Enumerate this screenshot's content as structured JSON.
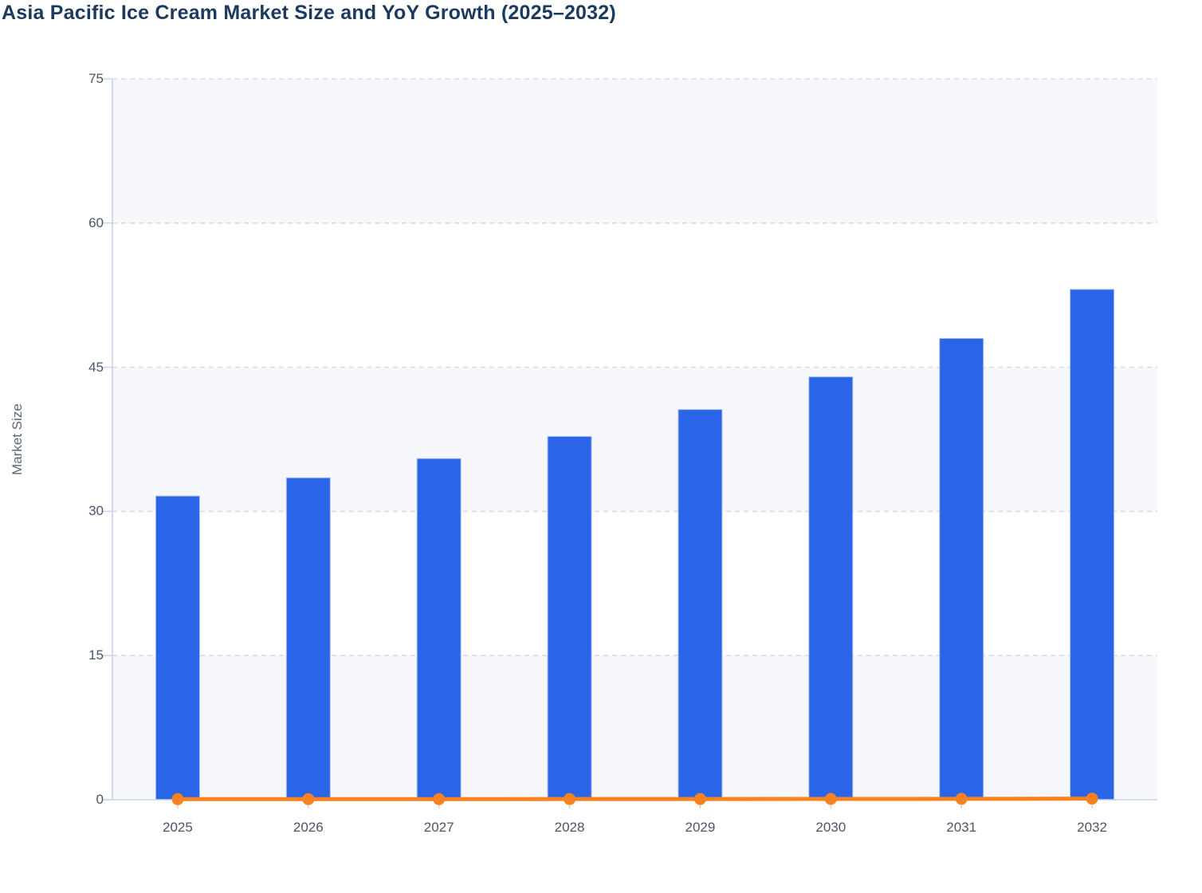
{
  "chart": {
    "title": "Asia Pacific Ice Cream Market Size and YoY Growth (2025–2032)",
    "ylabel": "Market Size"
  },
  "chart_data": {
    "type": "bar",
    "title": "Asia Pacific Ice Cream Market Size and YoY Growth (2025–2032)",
    "xlabel": "",
    "ylabel": "Market Size",
    "categories": [
      "2025",
      "2026",
      "2027",
      "2028",
      "2029",
      "2030",
      "2031",
      "2032"
    ],
    "series": [
      {
        "name": "Market Size",
        "type": "bar",
        "values": [
          31.6,
          33.5,
          35.5,
          37.8,
          40.6,
          44.0,
          48.0,
          53.1
        ]
      },
      {
        "name": "YoY Growth",
        "type": "line",
        "values": [
          0.06,
          0.06,
          0.06,
          0.07,
          0.07,
          0.08,
          0.09,
          0.11
        ]
      }
    ],
    "ylim": [
      0,
      75
    ],
    "yticks": [
      0,
      15,
      30,
      45,
      60,
      75
    ],
    "grid": "horizontal-dashed",
    "legend_position": "none",
    "colors": {
      "bar_fill": "#2a65e8",
      "bar_stroke": "#aebff2",
      "line": "#f8821f",
      "marker": "#f8821f",
      "axis": "#c9cfef",
      "gridline": "#d9dce3",
      "band_fill": "#f6f7fa",
      "band_alt_fill": "#ffffff",
      "title_color": "#1b3a5e",
      "tick_label_color": "#4b5568",
      "axis_title_color": "#5a6678",
      "background": "#ffffff"
    }
  }
}
